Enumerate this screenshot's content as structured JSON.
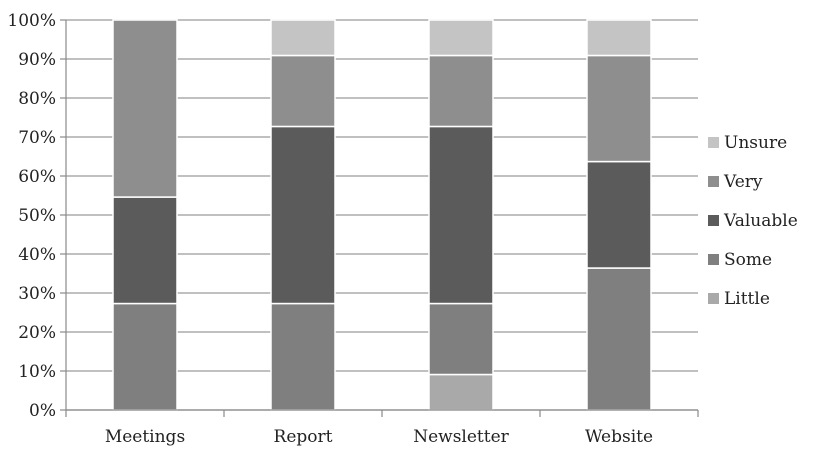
{
  "chart_data": {
    "type": "bar",
    "stacked": true,
    "percent": true,
    "categories": [
      "Meetings",
      "Report",
      "Newsletter",
      "Website"
    ],
    "series": [
      {
        "name": "Little",
        "color": "#a9a9a9",
        "values": [
          0,
          0,
          9.1,
          0
        ]
      },
      {
        "name": "Some",
        "color": "#7f7f7f",
        "values": [
          27.3,
          27.3,
          18.2,
          36.4
        ]
      },
      {
        "name": "Valuable",
        "color": "#5b5b5b",
        "values": [
          27.3,
          45.4,
          45.4,
          27.3
        ]
      },
      {
        "name": "Very",
        "color": "#8e8e8e",
        "values": [
          45.4,
          18.2,
          18.2,
          27.2
        ]
      },
      {
        "name": "Unsure",
        "color": "#c4c4c4",
        "values": [
          0,
          9.1,
          9.1,
          9.1
        ]
      }
    ],
    "legend_order": [
      "Unsure",
      "Very",
      "Valuable",
      "Some",
      "Little"
    ],
    "ylim": [
      0,
      100
    ],
    "yticks": [
      "0%",
      "10%",
      "20%",
      "30%",
      "40%",
      "50%",
      "60%",
      "70%",
      "80%",
      "90%",
      "100%"
    ],
    "grid": true,
    "legend_position": "right"
  }
}
